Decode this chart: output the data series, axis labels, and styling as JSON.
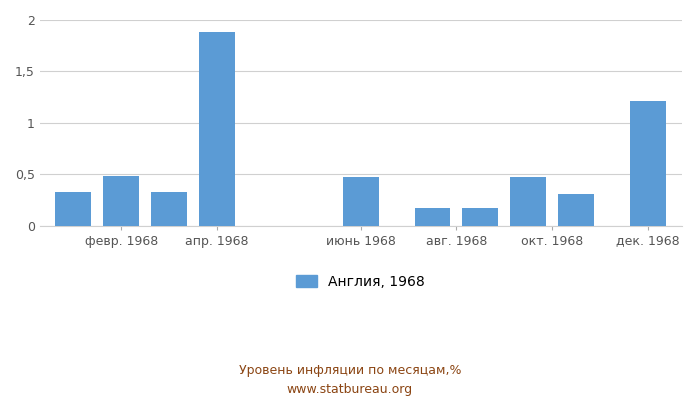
{
  "x_tick_labels": [
    "февр. 1968",
    "апр. 1968",
    "июнь 1968",
    "авг. 1968",
    "окт. 1968",
    "дек. 1968"
  ],
  "values": [
    0.33,
    0.48,
    0.33,
    1.88,
    0.0,
    0.47,
    0.17,
    0.17,
    0.47,
    0.31,
    1.21
  ],
  "bar_positions": [
    0,
    1,
    2,
    3,
    5,
    6,
    7.5,
    8.5,
    9.5,
    10.5,
    12
  ],
  "x_tick_positions": [
    0.5,
    3.0,
    5.5,
    8.0,
    10.0,
    12.0
  ],
  "bar_color": "#5B9BD5",
  "ylim": [
    0,
    2.0
  ],
  "yticks": [
    0,
    0.5,
    1.0,
    1.5,
    2.0
  ],
  "ytick_labels": [
    "0",
    "0,5",
    "1",
    "1,5",
    "2"
  ],
  "legend_label": "Англия, 1968",
  "footer_text": "Уровень инфляции по месяцам,%\nwww.statbureau.org",
  "footer_color": "#8B4513",
  "background_color": "#ffffff",
  "grid_color": "#d0d0d0"
}
